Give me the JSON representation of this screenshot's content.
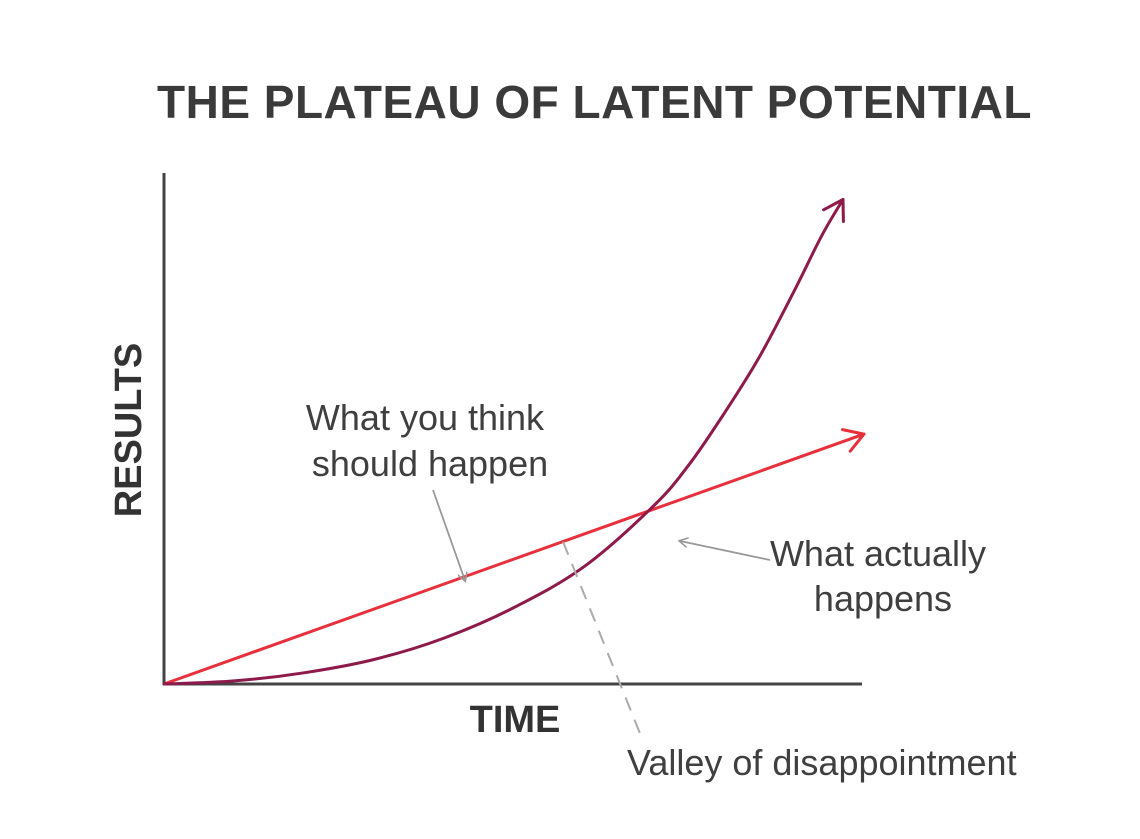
{
  "chart_data": {
    "type": "line",
    "title": "THE PLATEAU OF LATENT POTENTIAL",
    "xlabel": "TIME",
    "ylabel": "RESULTS",
    "xlim": [
      0,
      10
    ],
    "ylim": [
      0,
      10
    ],
    "grid": false,
    "colors": {
      "expected": "#e8303c",
      "actual": "#8e1a4b",
      "axis": "#444444",
      "pointer": "#999999",
      "valley": "#aaaaaa"
    },
    "series": [
      {
        "id": "expected",
        "x": [
          0,
          10
        ],
        "y": [
          0,
          4.9
        ]
      },
      {
        "id": "actual",
        "x": [
          0,
          1,
          2,
          3,
          4,
          5,
          6,
          7,
          7.5,
          8,
          8.5,
          9,
          9.4,
          9.7
        ],
        "y": [
          0,
          0.06,
          0.22,
          0.48,
          0.9,
          1.5,
          2.3,
          3.5,
          4.3,
          5.3,
          6.4,
          7.7,
          8.8,
          9.5
        ]
      }
    ],
    "annotations": [
      {
        "id": "expected-label",
        "lines": [
          "What you think",
          "should happen"
        ]
      },
      {
        "id": "actual-label",
        "lines": [
          "What actually",
          "happens"
        ]
      },
      {
        "id": "valley-label",
        "lines": [
          "Valley of disappointment"
        ]
      }
    ]
  }
}
